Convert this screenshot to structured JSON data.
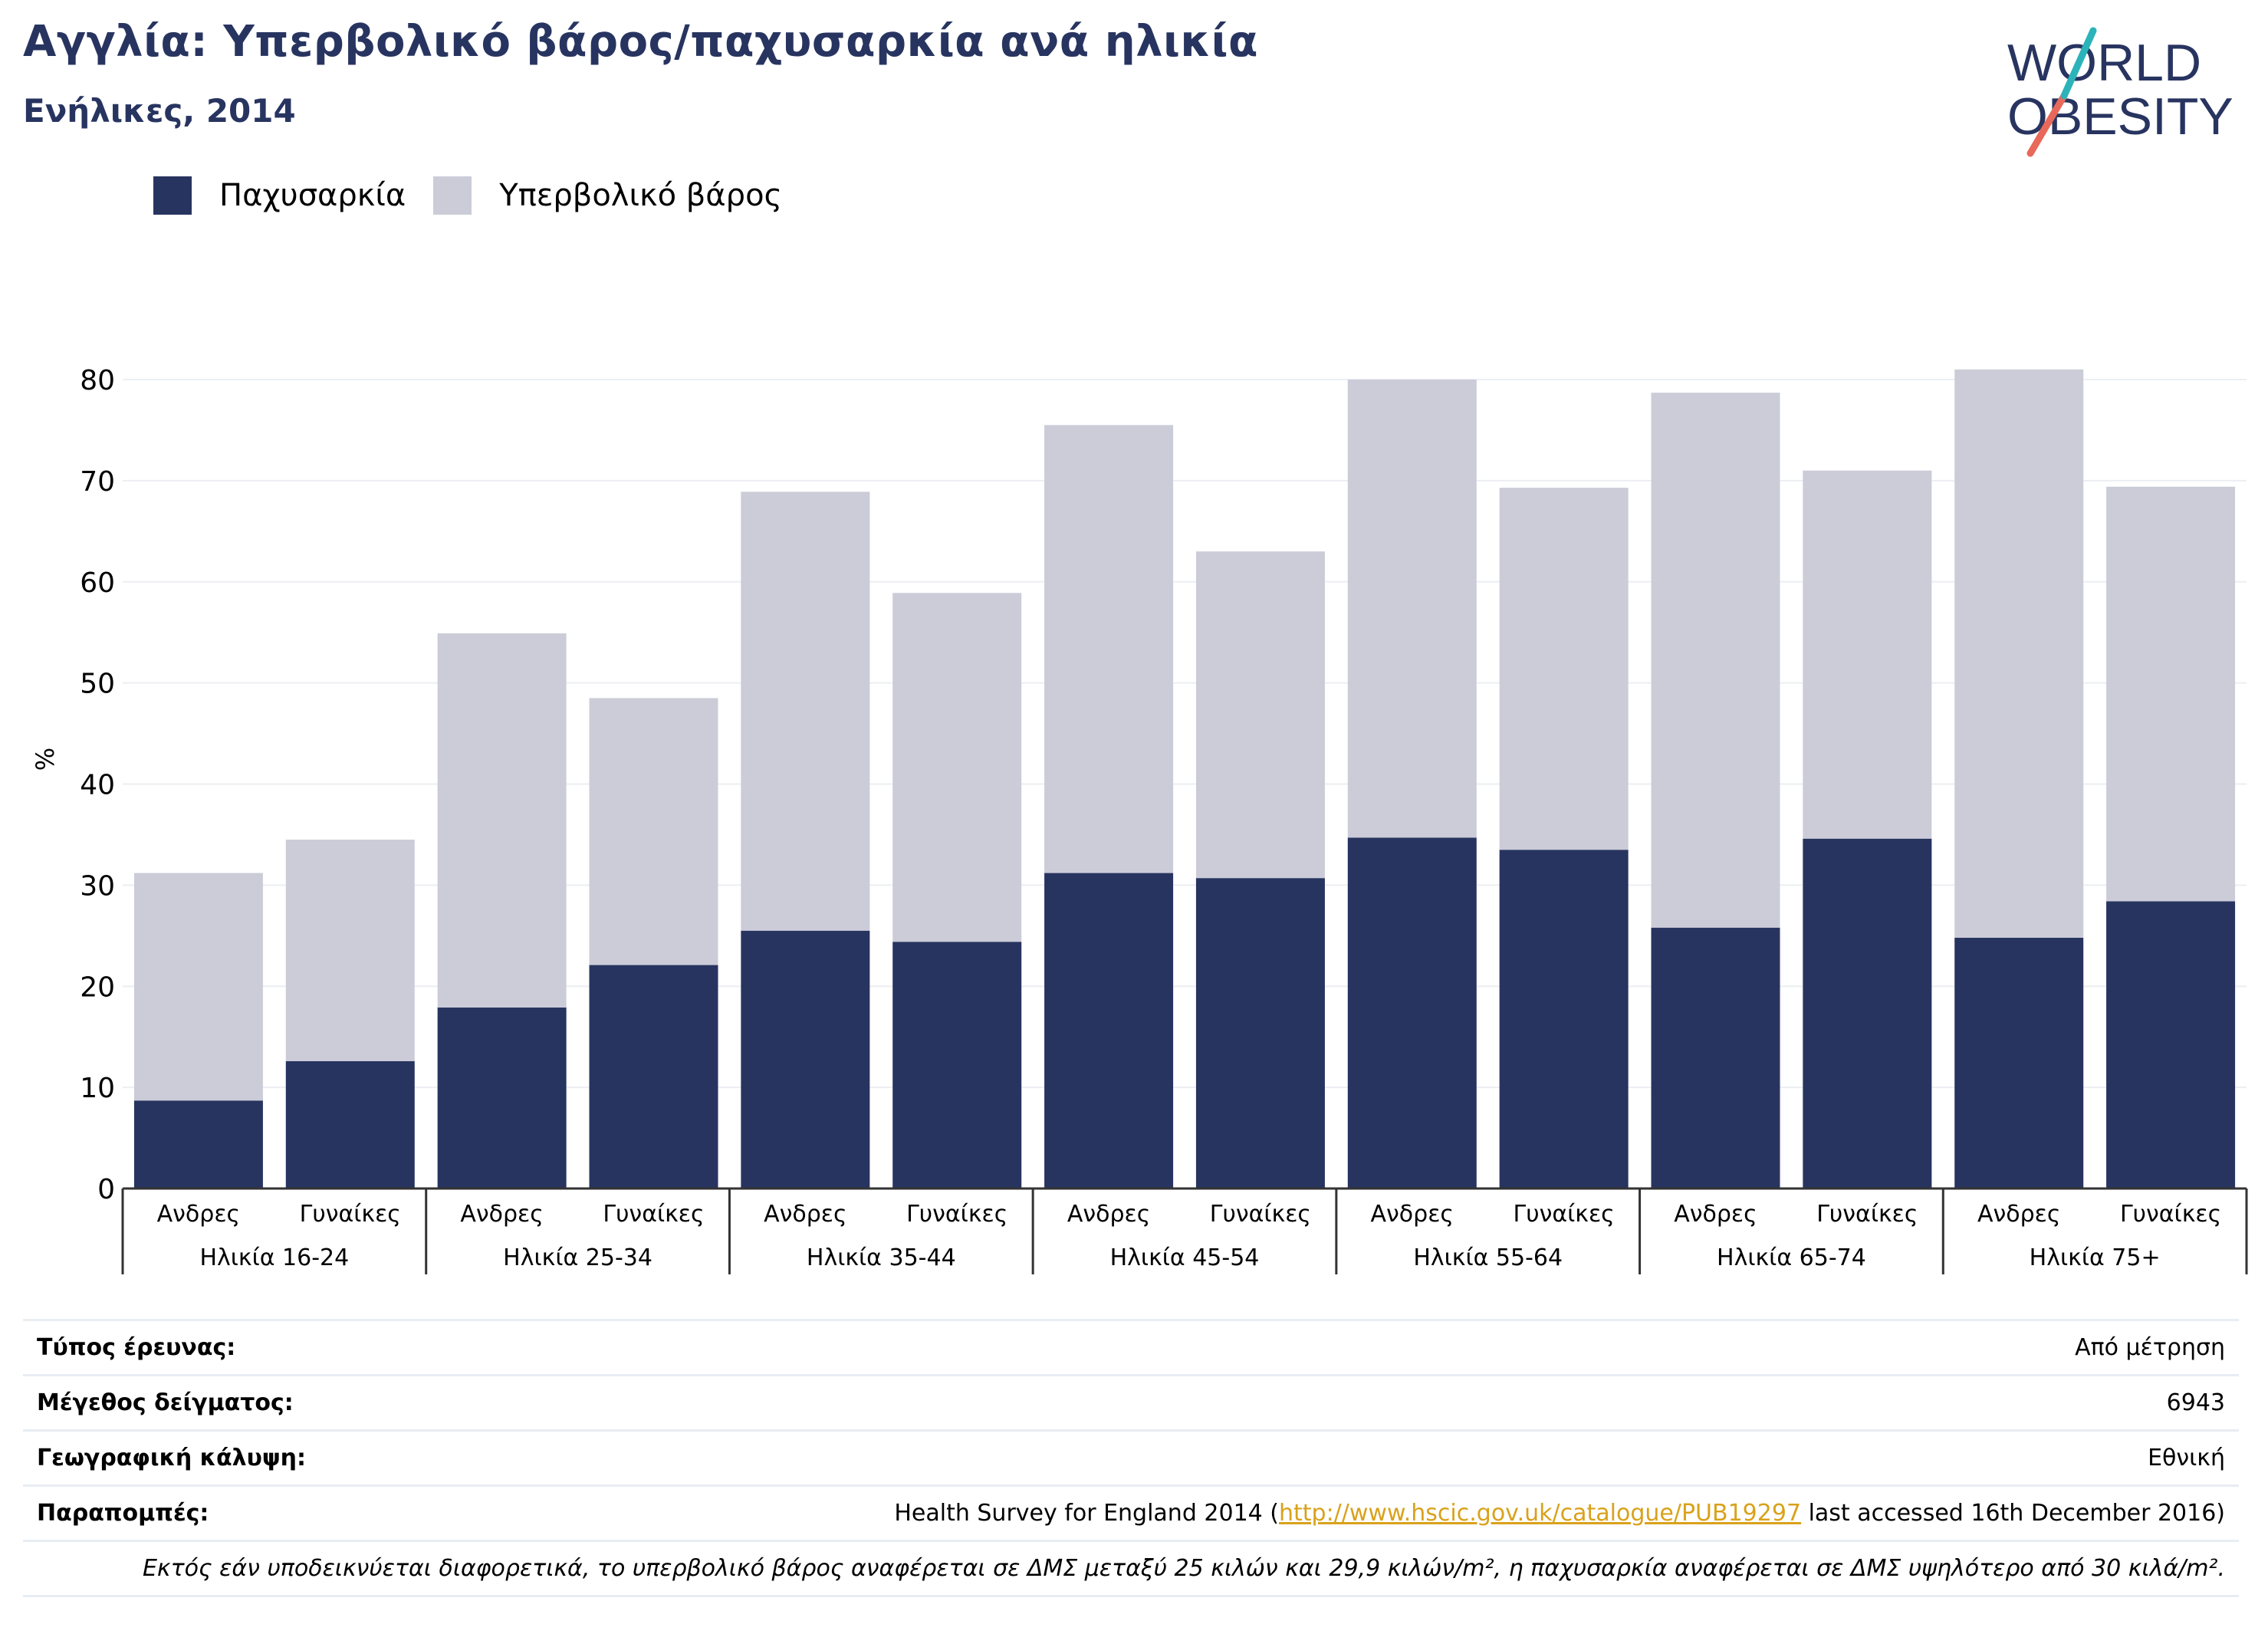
{
  "title": "Αγγλία: Υπερβολικό βάρος/παχυσαρκία ανά ηλικία",
  "subtitle": "Ενήλικες, 2014",
  "logo": {
    "line1": "WORLD",
    "line2": "OBESITY"
  },
  "colors": {
    "obesity": "#283460",
    "overweight": "#cbccd8",
    "title": "#283460",
    "link": "#d9a21b",
    "logo_slash_teal": "#2bb3b9",
    "logo_slash_red": "#e8695a"
  },
  "legend": [
    {
      "label": "Παχυσαρκία",
      "color": "#283460"
    },
    {
      "label": "Υπερβολικό βάρος",
      "color": "#cbccd8"
    }
  ],
  "chart_data": {
    "type": "bar",
    "stacked": true,
    "ylabel": "%",
    "ylim": [
      0,
      80
    ],
    "yticks": [
      0,
      10,
      20,
      30,
      40,
      50,
      60,
      70,
      80
    ],
    "grid": true,
    "legend_position": "top-left",
    "groups": [
      "Ηλικία 16-24",
      "Ηλικία 25-34",
      "Ηλικία 35-44",
      "Ηλικία 45-54",
      "Ηλικία 55-64",
      "Ηλικία 65-74",
      "Ηλικία 75+"
    ],
    "categories": [
      "Ανδρες",
      "Γυναίκες",
      "Ανδρες",
      "Γυναίκες",
      "Ανδρες",
      "Γυναίκες",
      "Ανδρες",
      "Γυναίκες",
      "Ανδρες",
      "Γυναίκες",
      "Ανδρες",
      "Γυναίκες",
      "Ανδρες",
      "Γυναίκες"
    ],
    "series": [
      {
        "name": "Παχυσαρκία",
        "values": [
          8.7,
          12.6,
          17.9,
          22.1,
          25.5,
          24.4,
          31.2,
          30.7,
          34.7,
          33.5,
          25.8,
          34.6,
          24.8,
          28.4
        ]
      },
      {
        "name": "Υπερβολικό βάρος",
        "values": [
          22.5,
          21.9,
          37.0,
          26.4,
          43.4,
          34.5,
          44.3,
          32.3,
          45.3,
          35.8,
          52.9,
          36.4,
          56.2,
          41.0
        ]
      }
    ]
  },
  "info": {
    "survey_type_label": "Τύπος έρευνας:",
    "survey_type_value": "Από μέτρηση",
    "sample_size_label": "Μέγεθος δείγματος:",
    "sample_size_value": "6943",
    "coverage_label": "Γεωγραφική κάλυψη:",
    "coverage_value": "Εθνική",
    "references_label": "Παραπομπές:",
    "references_prefix": "Health Survey for England 2014 (",
    "references_link": "http://www.hscic.gov.uk/catalogue/PUB19297",
    "references_suffix": " last accessed 16th December 2016)",
    "note": "Εκτός εάν υποδεικνύεται διαφορετικά, το υπερβολικό βάρος αναφέρεται σε ΔΜΣ μεταξύ 25 κιλών και 29,9 κιλών/m², η παχυσαρκία αναφέρεται σε ΔΜΣ υψηλότερο από 30 κιλά/m²."
  }
}
